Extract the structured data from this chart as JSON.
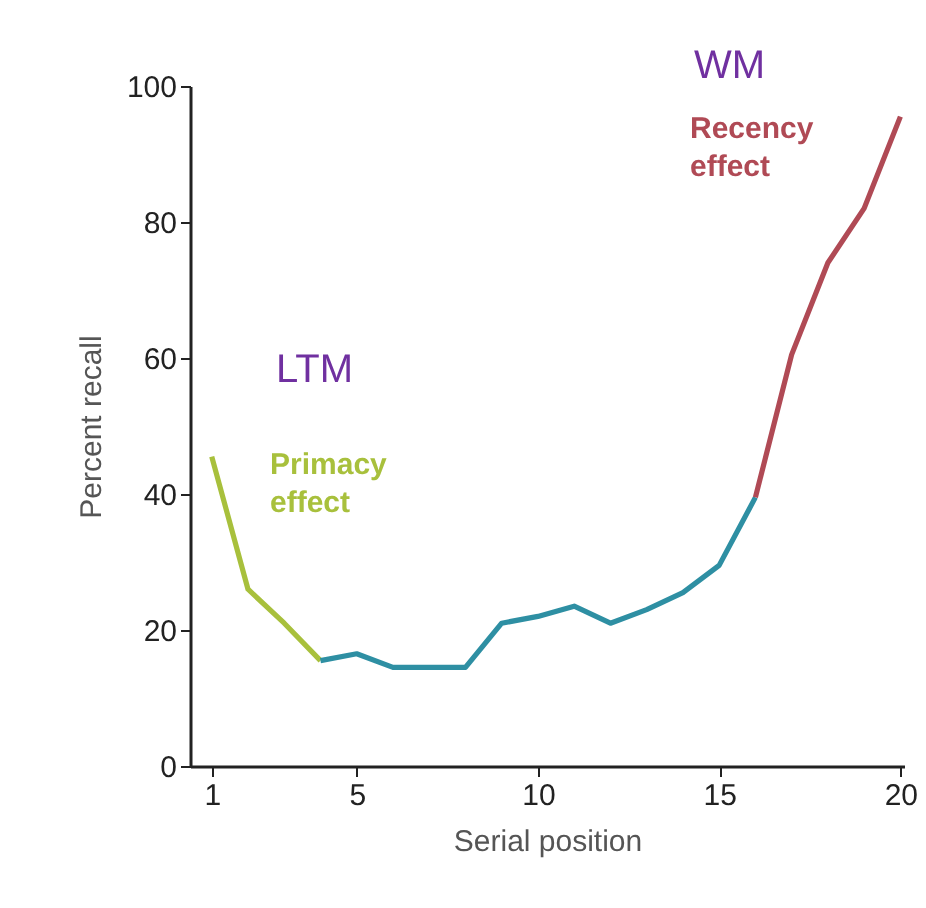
{
  "chart_data": {
    "type": "line",
    "xlabel": "Serial position",
    "ylabel": "Percent recall",
    "xlim": [
      0.4,
      20.1
    ],
    "xticks": [
      1,
      5,
      10,
      15,
      20
    ],
    "ylim": [
      0,
      100
    ],
    "yticks": [
      0,
      20,
      40,
      60,
      80,
      100
    ],
    "grid": false,
    "line_style": "solid",
    "marker": "none",
    "series": [
      {
        "color": "#a8c03c",
        "x": [
          1,
          2,
          3,
          4
        ],
        "values": [
          45.5,
          26,
          21,
          15.5
        ]
      },
      {
        "color": "#2e8fa3",
        "x": [
          4,
          5,
          6,
          7,
          8,
          9,
          10,
          11,
          12,
          13,
          14,
          15,
          16
        ],
        "values": [
          15.5,
          16.5,
          14.5,
          14.5,
          14.5,
          21,
          22,
          23.5,
          21,
          23,
          25.5,
          29.5,
          39.5
        ]
      },
      {
        "color": "#b04a55",
        "x": [
          16,
          17,
          18,
          19,
          20
        ],
        "values": [
          39.5,
          60.5,
          74,
          82,
          95.5
        ]
      }
    ],
    "annotations": [
      "LTM",
      "Primacy effect",
      "WM",
      "Recency effect"
    ]
  }
}
